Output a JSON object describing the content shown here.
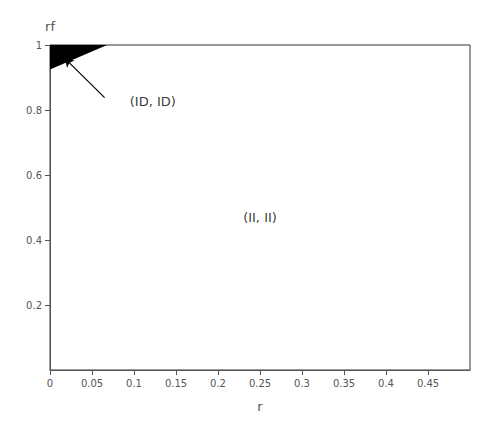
{
  "chart_data": {
    "type": "region",
    "xlabel": "r",
    "ylabel": "rf",
    "xlim": [
      0,
      0.5
    ],
    "ylim": [
      0,
      1
    ],
    "xticks": [
      0,
      0.05,
      0.1,
      0.15,
      0.2,
      0.25,
      0.3,
      0.35,
      0.4,
      0.45
    ],
    "yticks": [
      0.2,
      0.4,
      0.6,
      0.8,
      1
    ],
    "grid": false,
    "regions": [
      {
        "x": [
          0,
          0.068,
          0
        ],
        "y": [
          0.925,
          1,
          1
        ],
        "color": "#000000"
      }
    ],
    "annotations": [
      {
        "text": "(II, II)",
        "x": 0.25,
        "y": 0.47
      },
      {
        "text": "(ID, ID)",
        "x": 0.095,
        "y": 0.825
      }
    ],
    "arrows": [
      {
        "from": [
          0.065,
          0.838
        ],
        "to": [
          0.018,
          0.958
        ]
      }
    ]
  }
}
